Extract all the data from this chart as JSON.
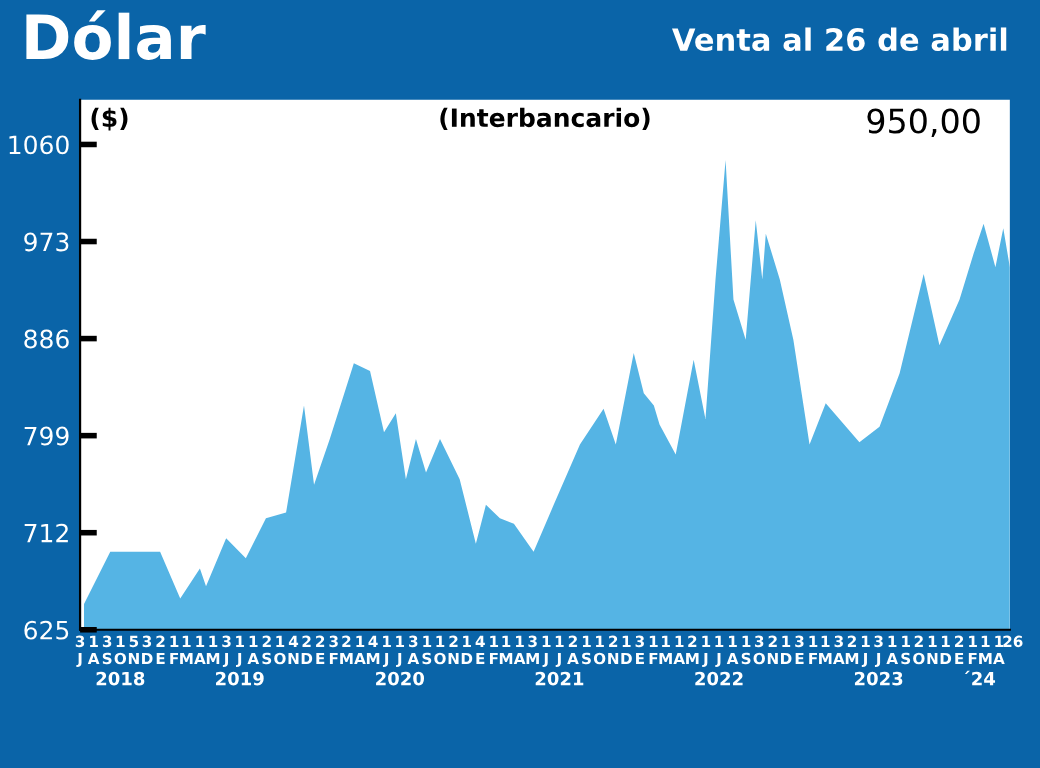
{
  "chart_data": {
    "type": "area",
    "title": "Dólar",
    "subtitle": "Venta al 26 de abril",
    "ylabel": "($)",
    "annotations": [
      "(Interbancario)",
      "950,00"
    ],
    "x": [
      "2018-07-10",
      "2018-09-08",
      "2018-12-31",
      "2019-02-15",
      "2019-04-01",
      "2019-04-15",
      "2019-05-31",
      "2019-07-15",
      "2019-08-30",
      "2019-10-15",
      "2019-11-25",
      "2019-12-18",
      "2020-01-23",
      "2020-03-18",
      "2020-04-24",
      "2020-05-26",
      "2020-06-22",
      "2020-07-15",
      "2020-08-07",
      "2020-08-30",
      "2020-10-01",
      "2020-11-15",
      "2020-12-22",
      "2021-01-14",
      "2021-02-15",
      "2021-03-19",
      "2021-05-03",
      "2021-06-18",
      "2021-08-17",
      "2021-10-10",
      "2021-11-07",
      "2021-12-18",
      "2022-01-10",
      "2022-02-02",
      "2022-02-15",
      "2022-03-24",
      "2022-05-04",
      "2022-05-31",
      "2022-06-23",
      "2022-07-16",
      "2022-08-03",
      "2022-08-31",
      "2022-09-23",
      "2022-10-08",
      "2022-10-16",
      "2022-11-17",
      "2022-12-18",
      "2023-01-24",
      "2023-03-02",
      "2023-05-18",
      "2023-07-03",
      "2023-08-18",
      "2023-10-12",
      "2023-11-17",
      "2024-01-02",
      "2024-02-03",
      "2024-02-26",
      "2024-03-24",
      "2024-04-11",
      "2024-04-26"
    ],
    "series": [
      {
        "color": "#55b4e4",
        "values": [
          648,
          695,
          695,
          653,
          680,
          664,
          707,
          689,
          725,
          730,
          826,
          755,
          796,
          864,
          857,
          802,
          819,
          760,
          796,
          766,
          796,
          760,
          702,
          737,
          725,
          720,
          695,
          737,
          791,
          823,
          791,
          873,
          837,
          826,
          809,
          782,
          867,
          814,
          939,
          1046,
          921,
          885,
          992,
          939,
          980,
          939,
          885,
          791,
          828,
          793,
          807,
          855,
          944,
          880,
          921,
          962,
          989,
          950,
          985,
          950
        ]
      }
    ],
    "xlim": [
      "2018-07-01",
      "2024-04-26"
    ],
    "ylim": [
      625,
      1100
    ],
    "yticks": [
      625,
      712,
      799,
      886,
      973,
      1060
    ],
    "xticks": [
      {
        "value": "2018-07-01",
        "label": "3\nJ"
      },
      {
        "value": "2018-08-01",
        "label": "1\nA"
      },
      {
        "value": "2018-09-01",
        "label": "3\nS"
      },
      {
        "value": "2018-10-01",
        "label": "1\nO"
      },
      {
        "value": "2018-11-01",
        "label": "5\nN"
      },
      {
        "value": "2018-12-01",
        "label": "3\nD"
      },
      {
        "value": "2019-01-01",
        "label": "2\nE"
      },
      {
        "value": "2019-02-01",
        "label": "1\nF"
      },
      {
        "value": "2019-03-01",
        "label": "1\nM"
      },
      {
        "value": "2019-04-01",
        "label": "1\nA"
      },
      {
        "value": "2019-05-01",
        "label": "1\nM"
      },
      {
        "value": "2019-06-01",
        "label": "3\nJ"
      },
      {
        "value": "2019-07-01",
        "label": "1\nJ"
      },
      {
        "value": "2019-08-01",
        "label": "1\nA"
      },
      {
        "value": "2019-09-01",
        "label": "2\nS"
      },
      {
        "value": "2019-10-01",
        "label": "1\nO"
      },
      {
        "value": "2019-11-01",
        "label": "4\nN"
      },
      {
        "value": "2019-12-01",
        "label": "2\nD"
      },
      {
        "value": "2020-01-01",
        "label": "2\nE"
      },
      {
        "value": "2020-02-01",
        "label": "3\nF"
      },
      {
        "value": "2020-03-01",
        "label": "2\nM"
      },
      {
        "value": "2020-04-01",
        "label": "1\nA"
      },
      {
        "value": "2020-05-01",
        "label": "4\nM"
      },
      {
        "value": "2020-06-01",
        "label": "1\nJ"
      },
      {
        "value": "2020-07-01",
        "label": "1\nJ"
      },
      {
        "value": "2020-08-01",
        "label": "3\nA"
      },
      {
        "value": "2020-09-01",
        "label": "1\nS"
      },
      {
        "value": "2020-10-01",
        "label": "1\nO"
      },
      {
        "value": "2020-11-01",
        "label": "2\nN"
      },
      {
        "value": "2020-12-01",
        "label": "1\nD"
      },
      {
        "value": "2021-01-01",
        "label": "4\nE"
      },
      {
        "value": "2021-02-01",
        "label": "1\nF"
      },
      {
        "value": "2021-03-01",
        "label": "1\nM"
      },
      {
        "value": "2021-04-01",
        "label": "1\nA"
      },
      {
        "value": "2021-05-01",
        "label": "3\nM"
      },
      {
        "value": "2021-06-01",
        "label": "1\nJ"
      },
      {
        "value": "2021-07-01",
        "label": "1\nJ"
      },
      {
        "value": "2021-08-01",
        "label": "2\nA"
      },
      {
        "value": "2021-09-01",
        "label": "1\nS"
      },
      {
        "value": "2021-10-01",
        "label": "1\nO"
      },
      {
        "value": "2021-11-01",
        "label": "2\nN"
      },
      {
        "value": "2021-12-01",
        "label": "1\nD"
      },
      {
        "value": "2022-01-01",
        "label": "3\nE"
      },
      {
        "value": "2022-02-01",
        "label": "1\nF"
      },
      {
        "value": "2022-03-01",
        "label": "1\nM"
      },
      {
        "value": "2022-04-01",
        "label": "1\nA"
      },
      {
        "value": "2022-05-01",
        "label": "2\nM"
      },
      {
        "value": "2022-06-01",
        "label": "1\nJ"
      },
      {
        "value": "2022-07-01",
        "label": "1\nJ"
      },
      {
        "value": "2022-08-01",
        "label": "1\nA"
      },
      {
        "value": "2022-09-01",
        "label": "1\nS"
      },
      {
        "value": "2022-10-01",
        "label": "3\nO"
      },
      {
        "value": "2022-11-01",
        "label": "2\nN"
      },
      {
        "value": "2022-12-01",
        "label": "1\nD"
      },
      {
        "value": "2023-01-01",
        "label": "3\nE"
      },
      {
        "value": "2023-02-01",
        "label": "1\nF"
      },
      {
        "value": "2023-03-01",
        "label": "1\nM"
      },
      {
        "value": "2023-04-01",
        "label": "3\nA"
      },
      {
        "value": "2023-05-01",
        "label": "2\nM"
      },
      {
        "value": "2023-06-01",
        "label": "1\nJ"
      },
      {
        "value": "2023-07-01",
        "label": "3\nJ"
      },
      {
        "value": "2023-08-01",
        "label": "1\nA"
      },
      {
        "value": "2023-09-01",
        "label": "1\nS"
      },
      {
        "value": "2023-10-01",
        "label": "2\nO"
      },
      {
        "value": "2023-11-01",
        "label": "1\nN"
      },
      {
        "value": "2023-12-01",
        "label": "1\nD"
      },
      {
        "value": "2024-01-01",
        "label": "2\nE"
      },
      {
        "value": "2024-02-01",
        "label": "1\nF"
      },
      {
        "value": "2024-03-01",
        "label": "1\nM"
      },
      {
        "value": "2024-04-01",
        "label": "1\nA"
      },
      {
        "value": "2024-04-26",
        "label": ".26"
      }
    ],
    "x2lim": [
      "2018-07-01",
      "2024-04-26"
    ],
    "x2ticks": [
      {
        "value": "2018-10-01",
        "label": "2018"
      },
      {
        "value": "2019-07-01",
        "label": "2019"
      },
      {
        "value": "2020-07-01",
        "label": "2020"
      },
      {
        "value": "2021-07-01",
        "label": "2021"
      },
      {
        "value": "2022-07-01",
        "label": "2022"
      },
      {
        "value": "2023-07-01",
        "label": "2023"
      },
      {
        "value": "2024-02-15",
        "label": "´24"
      }
    ],
    "grid": false,
    "legend": false
  }
}
